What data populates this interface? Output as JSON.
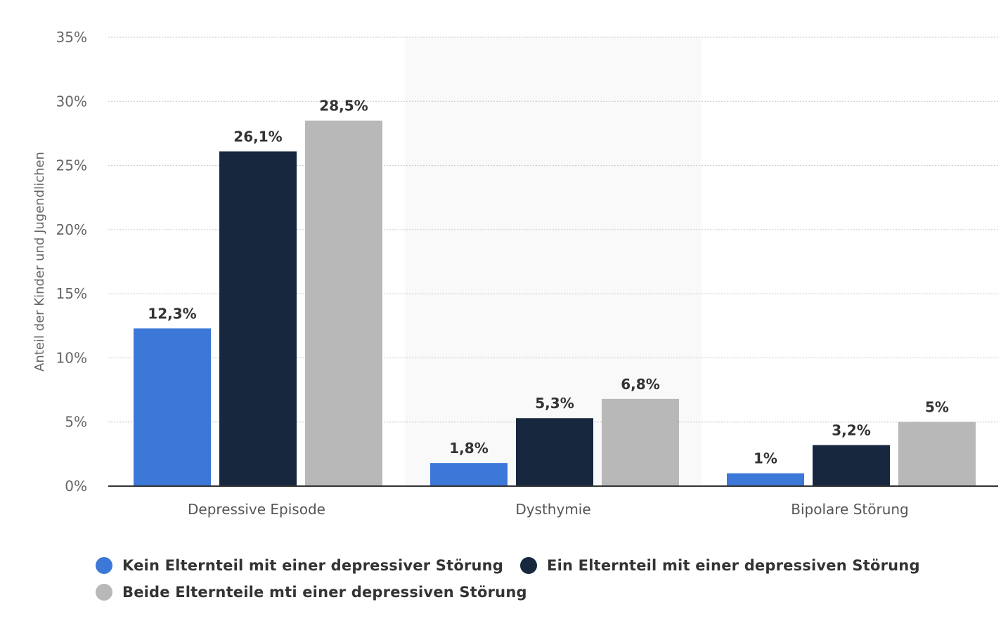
{
  "chart_data": {
    "type": "bar",
    "categories": [
      "Depressive Episode",
      "Dysthymie",
      "Bipolare Störung"
    ],
    "series": [
      {
        "name": "Kein Elternteil mit einer depressiver Störung",
        "values": [
          12.3,
          1.8,
          1
        ],
        "labels": [
          "12,3%",
          "1,8%",
          "1%"
        ],
        "color": "#3c78d8"
      },
      {
        "name": "Ein Elternteil mit einer depressiven Störung",
        "values": [
          26.1,
          5.3,
          3.2
        ],
        "labels": [
          "26,1%",
          "5,3%",
          "3,2%"
        ],
        "color": "#17283e"
      },
      {
        "name": "Beide Elternteile mti einer depressiven Störung",
        "values": [
          28.5,
          6.8,
          5
        ],
        "labels": [
          "28,5%",
          "6,8%",
          "5%"
        ],
        "color": "#b8b8b8"
      }
    ],
    "ylabel": "Anteil der Kinder und Jugendlichen",
    "xlabel": "",
    "ylim": [
      0,
      35
    ],
    "yticks": [
      0,
      5,
      10,
      15,
      20,
      25,
      30,
      35
    ],
    "ytick_labels": [
      "0%",
      "5%",
      "10%",
      "15%",
      "20%",
      "25%",
      "30%",
      "35%"
    ],
    "grid": true,
    "legend_position": "bottom-left"
  }
}
